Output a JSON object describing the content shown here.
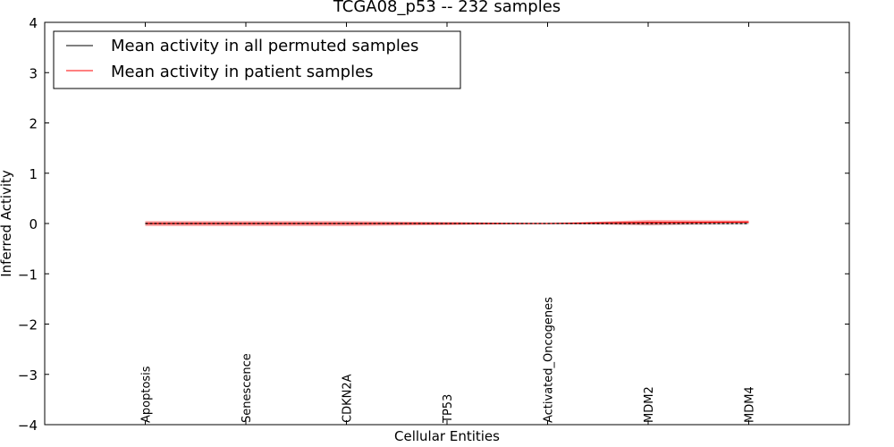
{
  "chart_data": {
    "type": "line",
    "title": "TCGA08_p53 -- 232 samples",
    "xlabel": "Cellular Entities",
    "ylabel": "Inferred Activity",
    "ylim": [
      -4,
      4
    ],
    "xlim": [
      -1,
      7
    ],
    "yticks": [
      4,
      3,
      2,
      1,
      0,
      -1,
      -2,
      -3,
      -4
    ],
    "ytick_labels": [
      "4",
      "3",
      "2",
      "1",
      "0",
      "−1",
      "−2",
      "−3",
      "−4"
    ],
    "categories": [
      "Apoptosis",
      "Senescence",
      "CDKN2A",
      "TP53",
      "Activated_Oncogenes",
      "MDM2",
      "MDM4"
    ],
    "legend_position": "top-left",
    "grid": false,
    "series": [
      {
        "name": "Mean activity in all permuted samples",
        "color": "#000000",
        "values": [
          0,
          0,
          0,
          0,
          0,
          0,
          0
        ],
        "band": [
          0.02,
          0.02,
          0.02,
          0.02,
          0.01,
          0.04,
          0.02
        ]
      },
      {
        "name": "Mean activity in patient samples",
        "color": "#ff0000",
        "values": [
          0,
          0,
          0,
          0,
          0,
          0.02,
          0.03
        ],
        "band": [
          0.05,
          0.05,
          0.05,
          0.03,
          0.005,
          0.05,
          0.03
        ]
      }
    ]
  }
}
